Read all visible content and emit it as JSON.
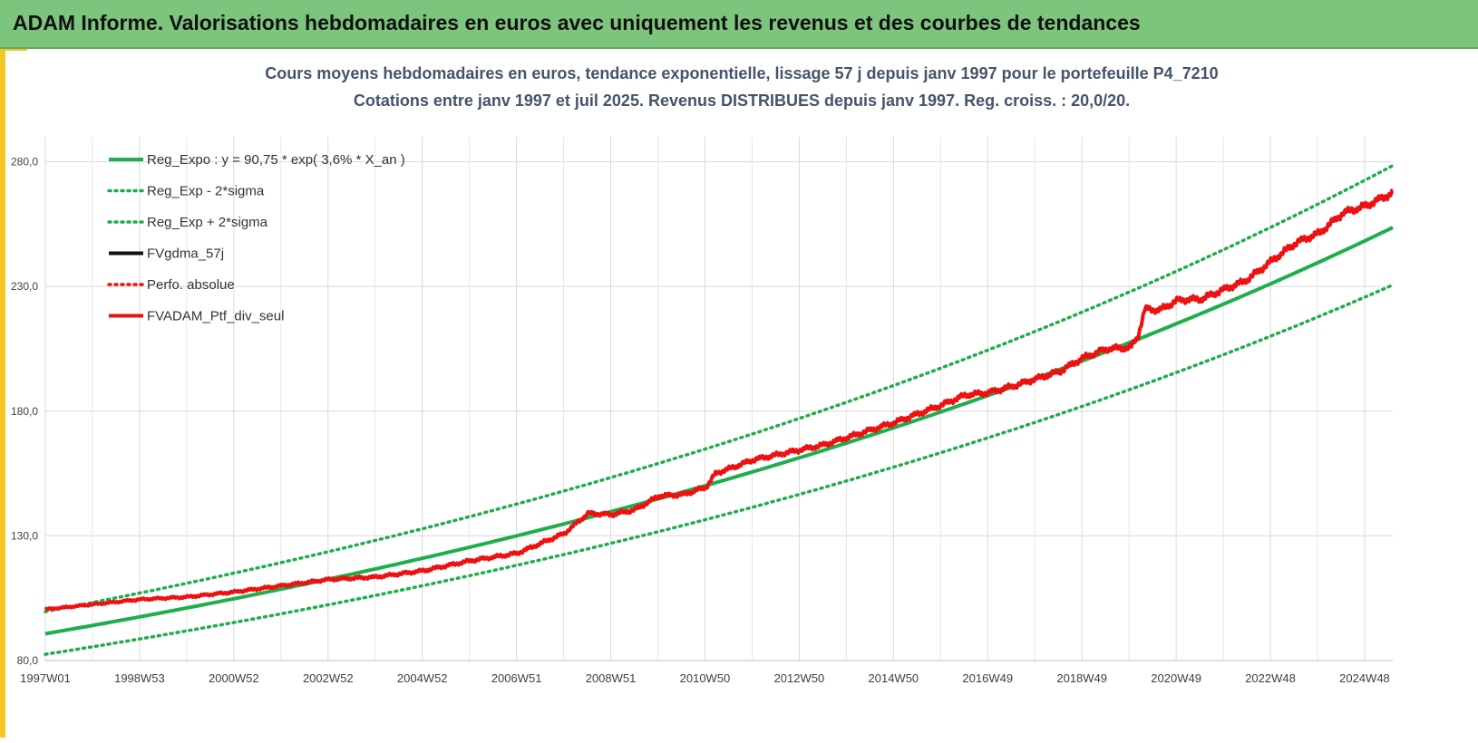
{
  "header": {
    "title": "ADAM Informe. Valorisations hebdomadaires en euros avec uniquement les revenus et des courbes de tendances"
  },
  "colors": {
    "header_bg": "#7dc47d",
    "accent": "#f3c623",
    "green": "#1fae4b",
    "black": "#111111",
    "red": "#ee1111",
    "title_text": "#44546a"
  },
  "chart_data": {
    "type": "line",
    "title": "Cours moyens hebdomadaires  en euros, tendance exponentielle, lissage 57 j depuis janv 1997 pour le portefeuille P4_7210",
    "subtitle": "Cotations  entre janv 1997 et juil 2025. Revenus DISTRIBUES depuis janv 1997. Reg. croiss. : 20,0/20.",
    "x_range": [
      1997.0,
      2025.55
    ],
    "ylim": [
      80,
      290
    ],
    "y_ticks": [
      80,
      130,
      180,
      230,
      280
    ],
    "y_tick_labels": [
      "80,0",
      "130,0",
      "180,0",
      "230,0",
      "280,0"
    ],
    "x_tick_labels": [
      "1997W01",
      "1998W53",
      "2000W52",
      "2002W52",
      "2004W52",
      "2006W51",
      "2008W51",
      "2010W50",
      "2012W50",
      "2014W50",
      "2016W49",
      "2018W49",
      "2020W49",
      "2022W48",
      "2024W48"
    ],
    "grid": "vertical-and-horizontal",
    "legend_position": "top-left",
    "regression": {
      "a": 90.75,
      "rate": 0.036,
      "sigma_band": 6.4
    },
    "series": [
      {
        "name": "Reg_Expo : y = 90,75 *  exp( 3,6% *  X_an )",
        "style": "solid",
        "color": "#1fae4b"
      },
      {
        "name": "Reg_Exp - 2*sigma",
        "style": "dotted",
        "color": "#1fae4b"
      },
      {
        "name": "Reg_Exp + 2*sigma",
        "style": "dotted",
        "color": "#1fae4b"
      },
      {
        "name": "FVgdma_57j",
        "style": "solid",
        "color": "#111111"
      },
      {
        "name": "Perfo. absolue",
        "style": "dotted",
        "color": "#ee1111"
      },
      {
        "name": "FVADAM_Ptf_div_seul",
        "style": "solid",
        "color": "#ee1111"
      }
    ],
    "portfolio_points": {
      "x": [
        1997.0,
        1998.0,
        1999.0,
        2000.0,
        2001.0,
        2002.0,
        2003.0,
        2004.0,
        2005.0,
        2006.0,
        2007.0,
        2007.5,
        2008.0,
        2008.5,
        2009.0,
        2009.5,
        2010.0,
        2010.5,
        2011.0,
        2011.2,
        2011.5,
        2012.0,
        2012.5,
        2013.0,
        2013.5,
        2014.0,
        2014.5,
        2015.0,
        2015.5,
        2016.0,
        2016.5,
        2017.0,
        2017.5,
        2018.0,
        2018.5,
        2019.0,
        2019.5,
        2020.0,
        2020.15,
        2020.3,
        2020.6,
        2021.0,
        2021.5,
        2022.0,
        2022.4,
        2022.7,
        2023.0,
        2023.5,
        2024.0,
        2024.5,
        2025.0,
        2025.55
      ],
      "y": [
        100.5,
        102.5,
        104.5,
        105.5,
        107.5,
        110.0,
        112.5,
        113.5,
        116.0,
        120.0,
        123.0,
        127.0,
        131.0,
        139.0,
        138.5,
        140.5,
        146.0,
        146.5,
        149.5,
        155.0,
        157.0,
        160.5,
        162.5,
        164.5,
        166.5,
        169.5,
        172.5,
        175.5,
        179.0,
        182.5,
        186.5,
        187.5,
        190.0,
        193.0,
        196.0,
        201.5,
        205.0,
        205.5,
        210.0,
        221.0,
        220.5,
        224.5,
        225.0,
        229.0,
        232.0,
        236.0,
        240.5,
        247.5,
        251.5,
        259.5,
        262.5,
        267.5
      ]
    }
  }
}
